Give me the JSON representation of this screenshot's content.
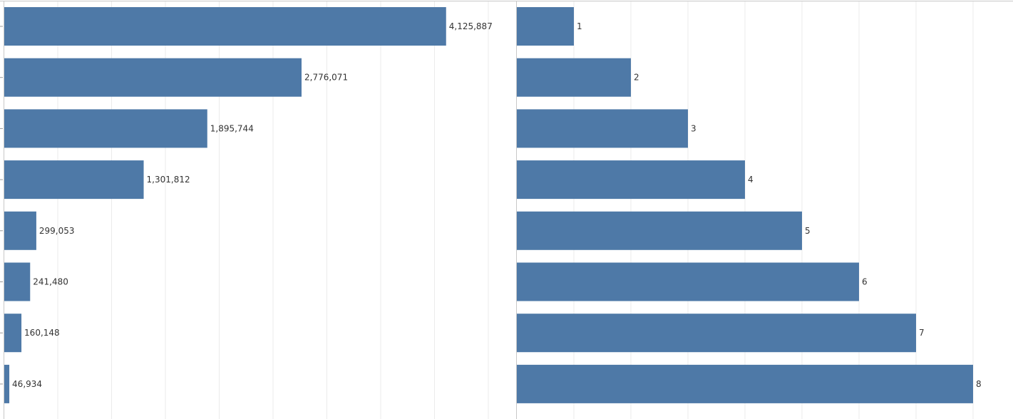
{
  "colors": {
    "bar": "#4e79a7",
    "grid": "#ebebeb",
    "axis": "#c8c8c8",
    "label": "#333333"
  },
  "chart_data": [
    {
      "type": "bar",
      "orientation": "horizontal",
      "title": "",
      "xlabel": "",
      "ylabel": "",
      "xlim": [
        0,
        4700000
      ],
      "grid": true,
      "value_labels": [
        "4,125,887",
        "2,776,071",
        "1,895,744",
        "1,301,812",
        "299,053",
        "241,480",
        "160,148",
        "46,934"
      ],
      "values": [
        4125887,
        2776071,
        1895744,
        1301812,
        299053,
        241480,
        160148,
        46934
      ]
    },
    {
      "type": "bar",
      "orientation": "horizontal",
      "title": "",
      "xlabel": "",
      "ylabel": "",
      "xlim": [
        0,
        8.7
      ],
      "grid": true,
      "value_labels": [
        "1",
        "2",
        "3",
        "4",
        "5",
        "6",
        "7",
        "8"
      ],
      "values": [
        1,
        2,
        3,
        4,
        5,
        6,
        7,
        8
      ]
    }
  ]
}
